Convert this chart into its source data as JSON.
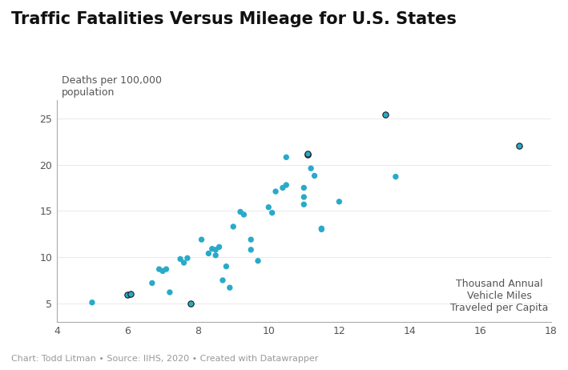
{
  "title": "Traffic Fatalities Versus Mileage for U.S. States",
  "ylabel": "Deaths per 100,000\npopulation",
  "xlabel_annotation": "Thousand Annual\nVehicle Miles\nTraveled per Capita",
  "footer": "Chart: Todd Litman • Source: IIHS, 2020 • Created with Datawrapper",
  "xlim": [
    4,
    18
  ],
  "ylim": [
    3,
    27
  ],
  "xticks": [
    4,
    6,
    8,
    10,
    12,
    14,
    16,
    18
  ],
  "yticks": [
    5,
    10,
    15,
    20,
    25
  ],
  "dot_color": "#29aac9",
  "outline_color": "#1a1a1a",
  "dot_size": 28,
  "points": [
    [
      5.0,
      5.1
    ],
    [
      6.0,
      5.9
    ],
    [
      6.1,
      6.0
    ],
    [
      6.7,
      7.2
    ],
    [
      6.9,
      8.7
    ],
    [
      7.0,
      8.5
    ],
    [
      7.1,
      8.7
    ],
    [
      7.2,
      6.2
    ],
    [
      7.5,
      9.8
    ],
    [
      7.6,
      9.4
    ],
    [
      7.7,
      9.9
    ],
    [
      7.8,
      5.0
    ],
    [
      8.1,
      11.9
    ],
    [
      8.3,
      10.4
    ],
    [
      8.4,
      10.9
    ],
    [
      8.5,
      10.8
    ],
    [
      8.5,
      10.2
    ],
    [
      8.6,
      11.1
    ],
    [
      8.7,
      7.5
    ],
    [
      8.8,
      9.0
    ],
    [
      8.9,
      6.7
    ],
    [
      9.0,
      13.3
    ],
    [
      9.2,
      14.9
    ],
    [
      9.3,
      14.6
    ],
    [
      9.5,
      10.8
    ],
    [
      9.5,
      11.9
    ],
    [
      9.7,
      9.6
    ],
    [
      10.0,
      15.4
    ],
    [
      10.1,
      14.8
    ],
    [
      10.2,
      17.1
    ],
    [
      10.4,
      17.5
    ],
    [
      10.5,
      17.8
    ],
    [
      10.5,
      20.8
    ],
    [
      11.0,
      17.5
    ],
    [
      11.0,
      16.5
    ],
    [
      11.0,
      15.7
    ],
    [
      11.1,
      21.1
    ],
    [
      11.1,
      21.2
    ],
    [
      11.2,
      19.6
    ],
    [
      11.3,
      18.8
    ],
    [
      11.5,
      13.1
    ],
    [
      11.5,
      13.0
    ],
    [
      12.0,
      16.0
    ],
    [
      13.3,
      25.4
    ],
    [
      13.6,
      18.7
    ],
    [
      17.1,
      22.0
    ]
  ],
  "outlined_points": [
    [
      6.0,
      5.9
    ],
    [
      6.1,
      6.0
    ],
    [
      7.8,
      5.0
    ],
    [
      11.1,
      21.1
    ],
    [
      11.1,
      21.2
    ],
    [
      17.1,
      22.0
    ],
    [
      13.3,
      25.4
    ]
  ],
  "background_color": "#ffffff",
  "spine_color": "#aaaaaa",
  "tick_color": "#555555",
  "title_fontsize": 15,
  "label_fontsize": 9,
  "footer_fontsize": 8,
  "annotation_fontsize": 9
}
